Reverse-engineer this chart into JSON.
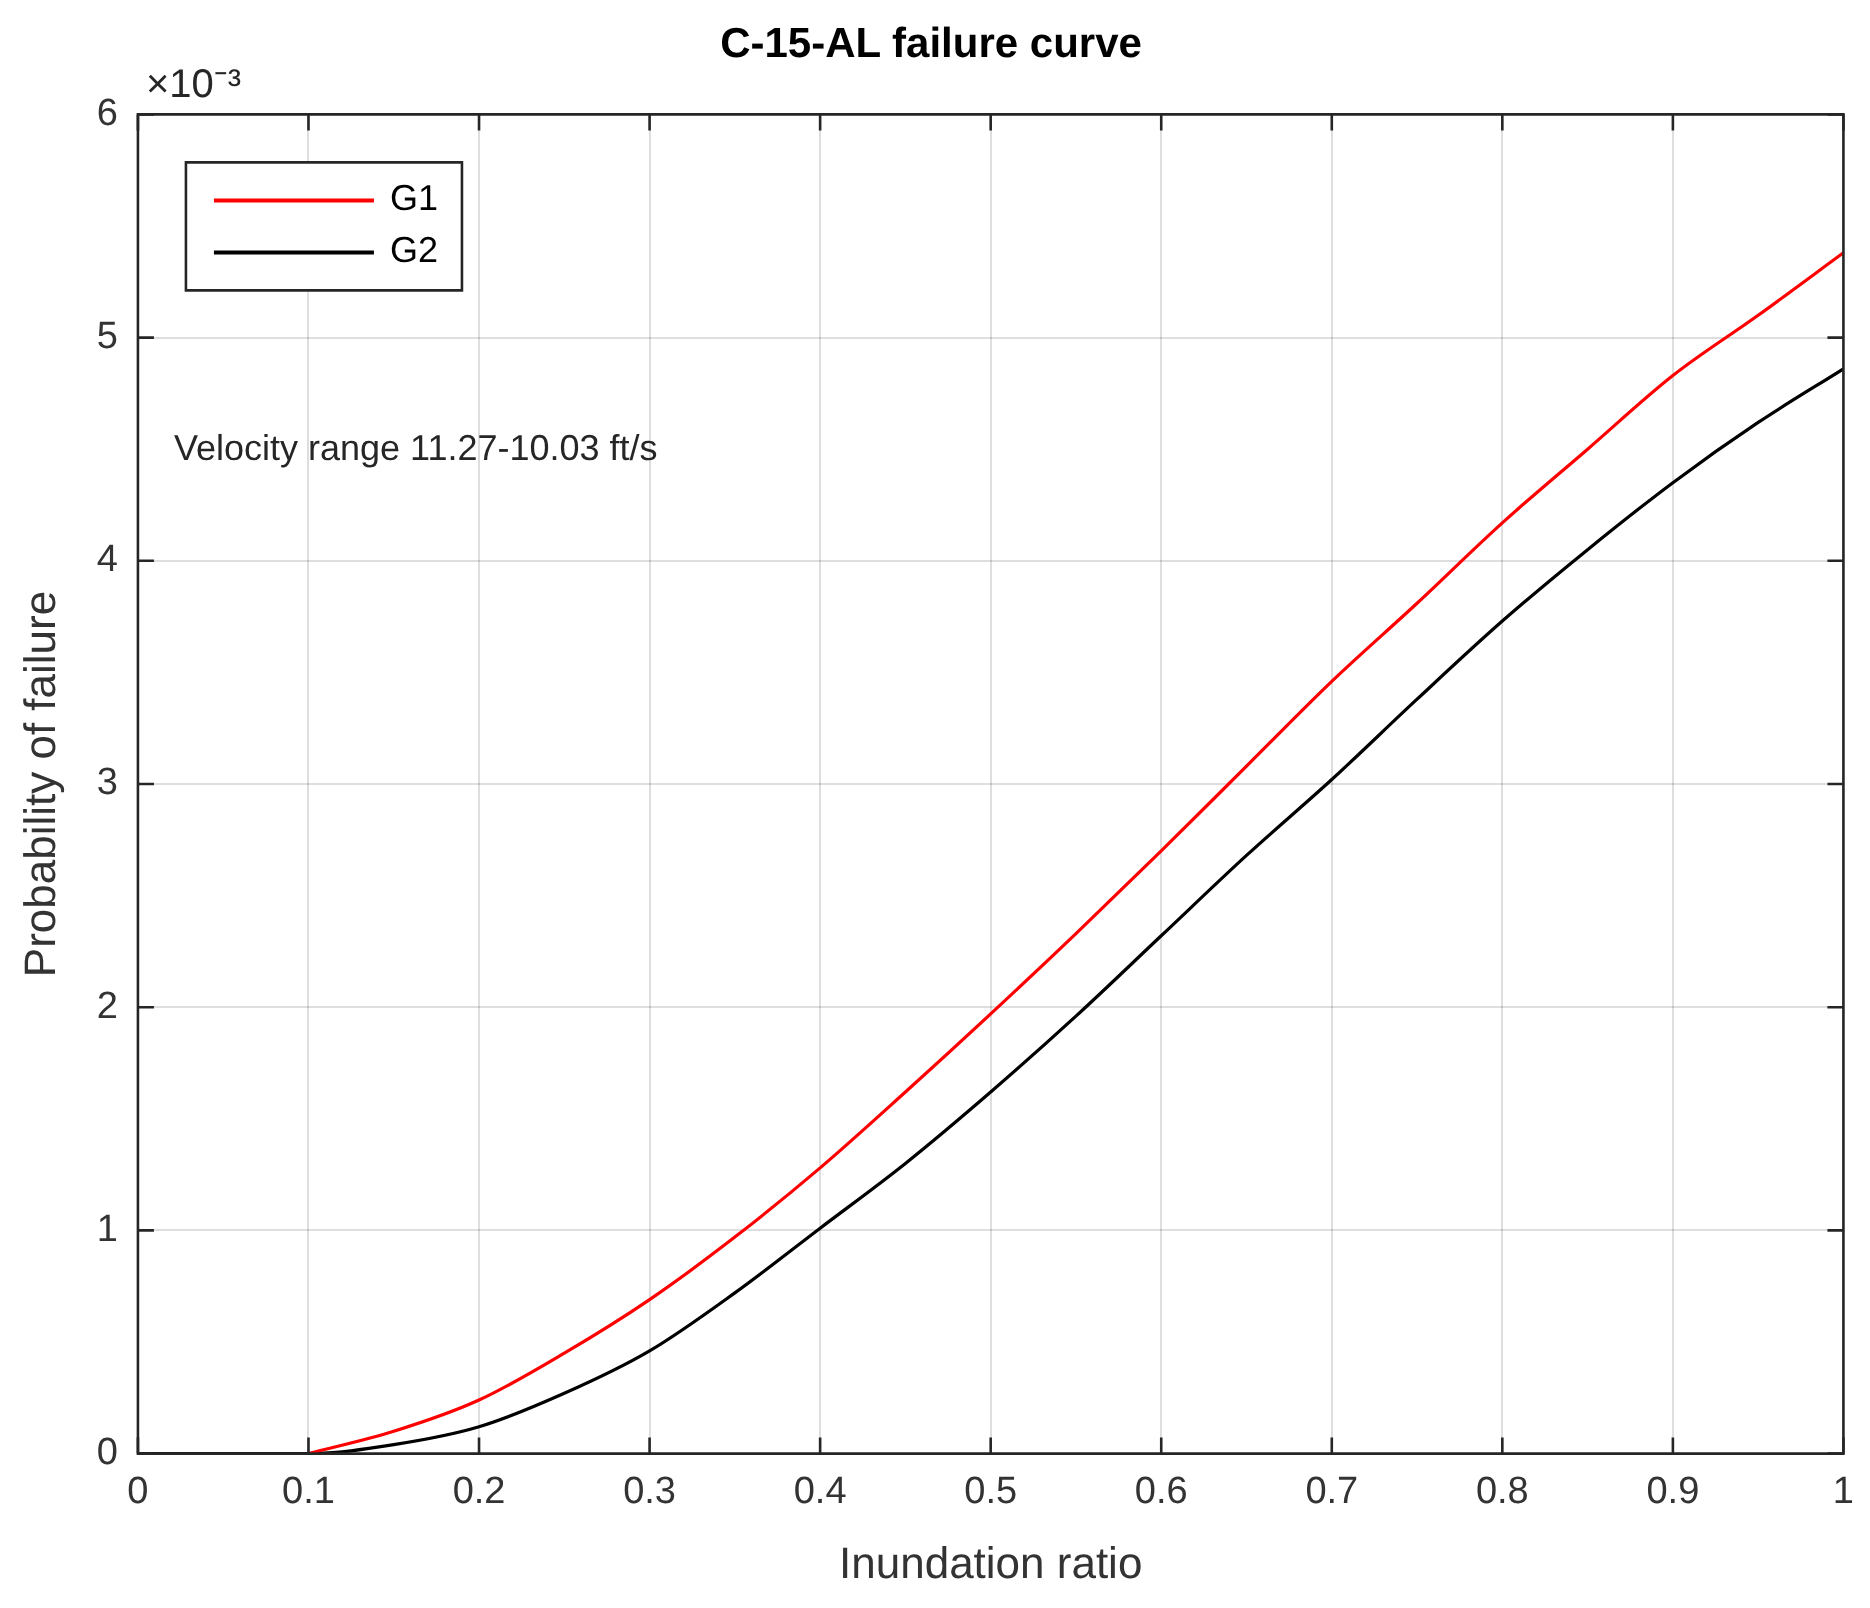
{
  "chart_data": {
    "type": "line",
    "title": "C-15-AL failure curve",
    "xlabel": "Inundation ratio",
    "ylabel": "Probability of failure",
    "annotations": [
      "×10⁻³",
      "Velocity range 11.27-10.03 ft/s"
    ],
    "x": [
      0,
      0.1,
      0.15,
      0.2,
      0.25,
      0.3,
      0.35,
      0.4,
      0.45,
      0.5,
      0.55,
      0.6,
      0.65,
      0.7,
      0.75,
      0.8,
      0.85,
      0.9,
      0.95,
      1
    ],
    "series": [
      {
        "name": "G1",
        "color": "#ff0000",
        "values": [
          null,
          0,
          0.1,
          0.24,
          0.45,
          0.69,
          0.97,
          1.28,
          1.62,
          1.97,
          2.33,
          2.7,
          3.08,
          3.46,
          3.81,
          4.17,
          4.5,
          4.83,
          5.1,
          5.38
        ]
      },
      {
        "name": "G2",
        "color": "#000000",
        "values": [
          0,
          0,
          0.04,
          0.12,
          0.27,
          0.46,
          0.72,
          1.01,
          1.3,
          1.62,
          1.96,
          2.32,
          2.68,
          3.02,
          3.38,
          3.73,
          4.05,
          4.35,
          4.62,
          4.86
        ]
      }
    ],
    "xlim": [
      0,
      1
    ],
    "xticks": [
      0,
      0.1,
      0.2,
      0.3,
      0.4,
      0.5,
      0.6,
      0.7,
      0.8,
      0.9,
      1
    ],
    "ylim": [
      0,
      6
    ],
    "yticks": [
      0,
      1,
      2,
      3,
      4,
      5,
      6
    ],
    "grid": true,
    "legend": "top left",
    "marker": "none",
    "line_style": "solid"
  }
}
